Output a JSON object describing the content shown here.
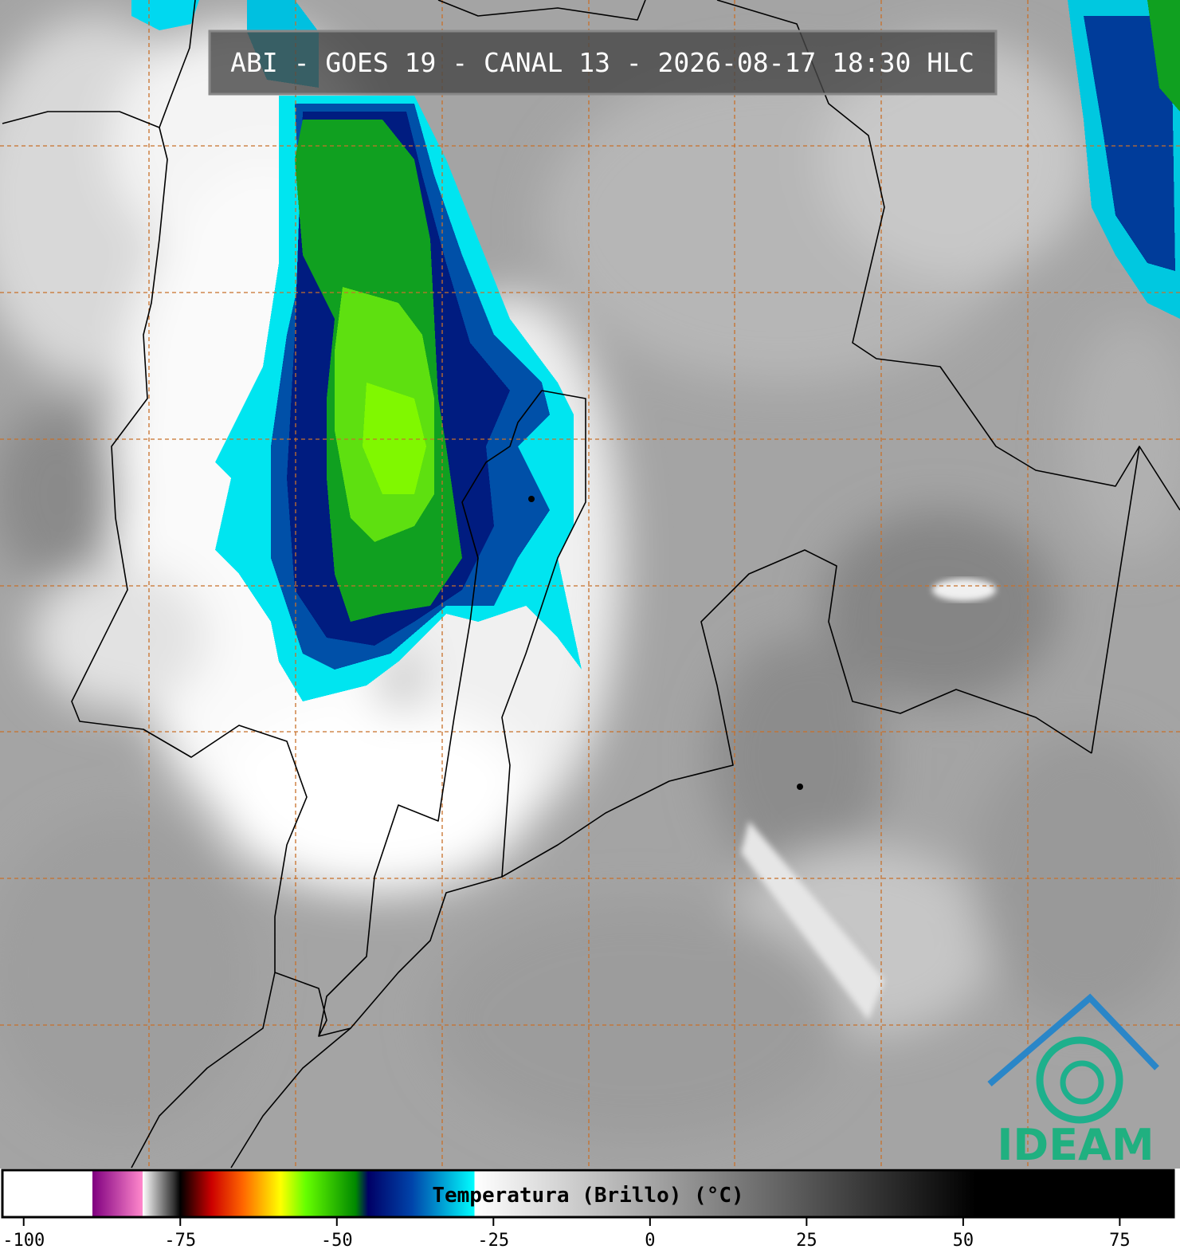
{
  "header": {
    "title": "ABI - GOES 19 - CANAL 13 - 2026-08-17 18:30 HLC"
  },
  "logo": {
    "text": "IDEAM"
  },
  "colorbar": {
    "label": "Temperatura (Brillo) (°C)",
    "range": [
      -103.4,
      83.6
    ],
    "ticks": [
      -100,
      -75,
      -50,
      -25,
      0,
      25,
      50,
      75
    ],
    "stops": [
      [
        -103.4,
        "#ffffff"
      ],
      [
        -89,
        "#ffffff"
      ],
      [
        -89,
        "#800080"
      ],
      [
        -81,
        "#ff88cc"
      ],
      [
        -81,
        "#ffffff"
      ],
      [
        -76,
        "#333333"
      ],
      [
        -75,
        "#000000"
      ],
      [
        -70,
        "#cc0000"
      ],
      [
        -65,
        "#ff6600"
      ],
      [
        -59,
        "#ffff00"
      ],
      [
        -55,
        "#66ff00"
      ],
      [
        -47,
        "#008800"
      ],
      [
        -45,
        "#000066"
      ],
      [
        -38,
        "#0044aa"
      ],
      [
        -28,
        "#00ffff"
      ],
      [
        -28,
        "#ffffff"
      ],
      [
        52,
        "#000000"
      ],
      [
        83.6,
        "#000000"
      ]
    ]
  }
}
